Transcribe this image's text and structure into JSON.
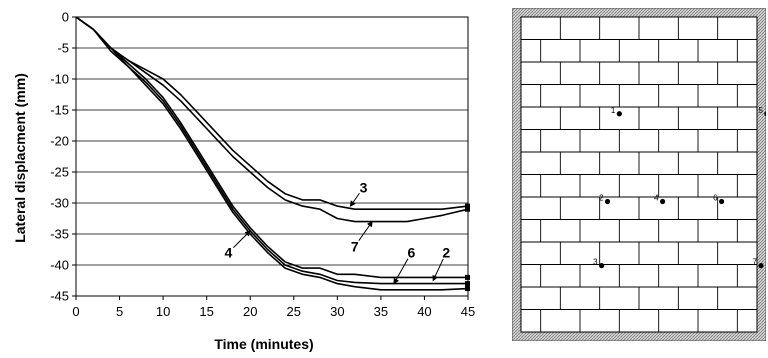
{
  "chart_data": {
    "type": "line",
    "xlabel": "Time (minutes)",
    "ylabel": "Lateral displacment (mm)",
    "xlim": [
      0,
      45
    ],
    "ylim": [
      -45,
      0
    ],
    "x_ticks": [
      0,
      5,
      10,
      15,
      20,
      25,
      30,
      35,
      40,
      45
    ],
    "y_ticks": [
      0,
      -5,
      -10,
      -15,
      -20,
      -25,
      -30,
      -35,
      -40,
      -45
    ],
    "grid": "horizontal",
    "legend": "none",
    "series": [
      {
        "name": "3",
        "x": [
          0,
          2,
          4,
          6,
          8,
          10,
          12,
          14,
          16,
          18,
          20,
          22,
          24,
          26,
          28,
          30,
          32,
          35,
          38,
          40,
          42,
          45
        ],
        "y": [
          0,
          -2,
          -5,
          -7,
          -8.5,
          -10,
          -12.5,
          -15.5,
          -18.5,
          -21.5,
          -24,
          -26.5,
          -28.5,
          -29.5,
          -29.5,
          -30.5,
          -31,
          -31,
          -31,
          -31,
          -31,
          -30.5
        ]
      },
      {
        "name": "7",
        "x": [
          0,
          2,
          4,
          6,
          8,
          10,
          12,
          14,
          16,
          18,
          20,
          22,
          24,
          26,
          28,
          30,
          32,
          35,
          38,
          40,
          42,
          45
        ],
        "y": [
          0,
          -2,
          -5,
          -7,
          -9,
          -11,
          -13.5,
          -16.5,
          -19.5,
          -22.5,
          -25,
          -27.5,
          -29.5,
          -30.5,
          -31,
          -32.5,
          -33,
          -33,
          -33,
          -32.5,
          -32,
          -31
        ]
      },
      {
        "name": "4",
        "x": [
          0,
          2,
          4,
          6,
          8,
          10,
          12,
          14,
          16,
          18,
          20,
          22,
          24,
          26,
          28,
          30,
          32,
          35,
          38,
          40,
          42,
          45
        ],
        "y": [
          0,
          -2,
          -5,
          -7.5,
          -10,
          -13,
          -17,
          -21.5,
          -26,
          -30.5,
          -34,
          -37,
          -39.5,
          -40.5,
          -40.5,
          -41.5,
          -41.5,
          -42,
          -42,
          -42,
          -42,
          -42
        ]
      },
      {
        "name": "6",
        "x": [
          0,
          2,
          4,
          6,
          8,
          10,
          12,
          14,
          16,
          18,
          20,
          22,
          24,
          26,
          28,
          30,
          32,
          35,
          38,
          40,
          42,
          45
        ],
        "y": [
          0,
          -2,
          -5,
          -8,
          -10.5,
          -13.5,
          -17.5,
          -22,
          -26.5,
          -31,
          -34.5,
          -37.5,
          -40,
          -41,
          -41.5,
          -42.5,
          -42.8,
          -43,
          -43,
          -43,
          -43,
          -43
        ]
      },
      {
        "name": "2",
        "x": [
          0,
          2,
          4,
          6,
          8,
          10,
          12,
          14,
          16,
          18,
          20,
          22,
          24,
          26,
          28,
          30,
          32,
          35,
          38,
          40,
          42,
          45
        ],
        "y": [
          0,
          -2,
          -5.5,
          -8,
          -11,
          -14,
          -18,
          -22.5,
          -27,
          -31.5,
          -35,
          -38,
          -40.5,
          -41.5,
          -42,
          -43,
          -43.5,
          -44,
          -44,
          -44,
          -44,
          -43.8
        ]
      }
    ],
    "curve_labels": [
      {
        "text": "3",
        "x": 33,
        "y": -27.5,
        "ax": 31.5,
        "ay": -30.5
      },
      {
        "text": "7",
        "x": 32,
        "y": -37,
        "ax": 34,
        "ay": -33
      },
      {
        "text": "4",
        "x": 17.5,
        "y": -38,
        "ax": 20,
        "ay": -34.5
      },
      {
        "text": "6",
        "x": 38.5,
        "y": -38,
        "ax": 36.5,
        "ay": -43
      },
      {
        "text": "2",
        "x": 42.5,
        "y": -38,
        "ax": 41,
        "ay": -42.5
      }
    ]
  },
  "wall": {
    "points": [
      {
        "id": "1",
        "col": 2.5,
        "row": 4.3
      },
      {
        "id": "5",
        "col": 6.25,
        "row": 4.3
      },
      {
        "id": "2",
        "col": 2.2,
        "row": 8.2
      },
      {
        "id": "4",
        "col": 3.6,
        "row": 8.2
      },
      {
        "id": "6",
        "col": 5.1,
        "row": 8.2
      },
      {
        "id": "3",
        "col": 2.05,
        "row": 11.05
      },
      {
        "id": "7",
        "col": 6.1,
        "row": 11.05
      }
    ]
  }
}
